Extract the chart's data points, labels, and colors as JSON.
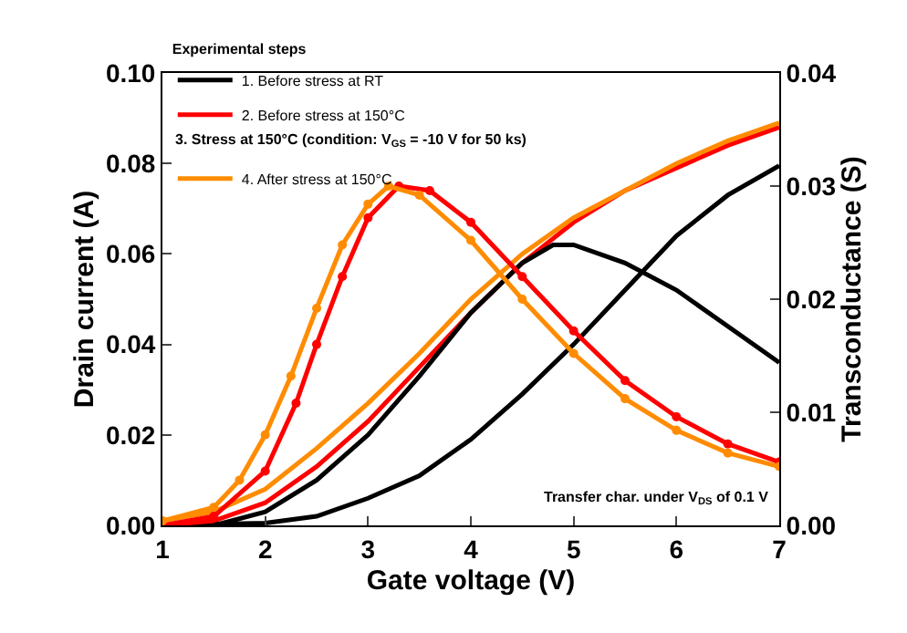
{
  "chart_data": {
    "type": "line",
    "xlabel": "Gate voltage (V)",
    "ylabel": "Drain current (A)",
    "y2label": "Transconductance (S)",
    "legend_title": "Experimental steps",
    "legend": "top left",
    "xlim": [
      1,
      7
    ],
    "xticks": [
      1,
      2,
      3,
      4,
      5,
      6,
      7
    ],
    "ylim": [
      0,
      0.1
    ],
    "yticks": [
      {
        "value": 0,
        "label": "0.00"
      },
      {
        "value": 0.02,
        "label": "0.02"
      },
      {
        "value": 0.04,
        "label": "0.04"
      },
      {
        "value": 0.06,
        "label": "0.06"
      },
      {
        "value": 0.08,
        "label": "0.08"
      },
      {
        "value": 0.1,
        "label": "0.10"
      }
    ],
    "y2lim": [
      0,
      0.04
    ],
    "y2ticks": [
      {
        "value": 0,
        "label": "0.00"
      },
      {
        "value": 0.01,
        "label": "0.01"
      },
      {
        "value": 0.02,
        "label": "0.02"
      },
      {
        "value": 0.03,
        "label": "0.03"
      },
      {
        "value": 0.04,
        "label": "0.04"
      }
    ],
    "annotations": [
      "3. Stress at 150°C (condition: V$_{GS}$ = -10 V for 50 ks)",
      "Transfer char. under V$_{DS}$ of 0.1 V"
    ],
    "series": [
      {
        "name": "1. Before stress at RT",
        "color": "#000000",
        "marker": "none",
        "x": [
          1,
          2,
          2.5,
          3,
          3.5,
          4,
          4.5,
          5,
          5.5,
          6,
          6.5,
          7
        ],
        "values": [
          0,
          0.0005,
          0.002,
          0.006,
          0.011,
          0.019,
          0.029,
          0.04,
          0.052,
          0.064,
          0.073,
          0.0795
        ]
      },
      {
        "name": "2. Before stress at 150°C",
        "color": "#ff0000",
        "marker": "none",
        "x": [
          1,
          1.5,
          2,
          2.5,
          3,
          3.5,
          4,
          4.5,
          5,
          5.5,
          6,
          6.5,
          7
        ],
        "values": [
          0,
          0.001,
          0.005,
          0.013,
          0.023,
          0.035,
          0.047,
          0.058,
          0.067,
          0.074,
          0.079,
          0.084,
          0.088
        ]
      },
      {
        "name": "4. After stress at 150°C",
        "color": "#ff8c00",
        "marker": "none",
        "x": [
          1,
          1.5,
          2,
          2.5,
          3,
          3.5,
          4,
          4.5,
          5,
          5.5,
          6,
          6.5,
          7
        ],
        "values": [
          0.001,
          0.003,
          0.008,
          0.017,
          0.027,
          0.038,
          0.05,
          0.06,
          0.068,
          0.074,
          0.08,
          0.085,
          0.089
        ]
      },
      {
        "color": "#000000",
        "marker": "none",
        "axis": "y2",
        "x": [
          1.5,
          2,
          2.5,
          3,
          3.5,
          4,
          4.5,
          4.8,
          5,
          5.5,
          6,
          6.5,
          7
        ],
        "values": [
          0,
          0.0012,
          0.004,
          0.008,
          0.0132,
          0.0188,
          0.0232,
          0.0248,
          0.0248,
          0.0232,
          0.0208,
          0.0176,
          0.0144
        ]
      },
      {
        "color": "#ff0000",
        "marker": "circle",
        "axis": "y2",
        "x": [
          1,
          1.5,
          2,
          2.3,
          2.5,
          2.75,
          3,
          3.3,
          3.6,
          4,
          4.5,
          5,
          5.5,
          6,
          6.5,
          7
        ],
        "values": [
          0,
          0.0008,
          0.0048,
          0.0108,
          0.016,
          0.022,
          0.0272,
          0.03,
          0.0296,
          0.0268,
          0.022,
          0.0172,
          0.0128,
          0.0096,
          0.0072,
          0.0056
        ]
      },
      {
        "color": "#ff8c00",
        "marker": "circle",
        "axis": "y2",
        "x": [
          1,
          1.5,
          1.75,
          2,
          2.25,
          2.5,
          2.75,
          3,
          3.2,
          3.5,
          4,
          4.5,
          5,
          5.5,
          6,
          6.5,
          7
        ],
        "values": [
          0.0004,
          0.0016,
          0.004,
          0.008,
          0.0132,
          0.0192,
          0.0248,
          0.0284,
          0.03,
          0.0292,
          0.0252,
          0.02,
          0.0152,
          0.0112,
          0.0084,
          0.0064,
          0.0052
        ]
      }
    ]
  }
}
